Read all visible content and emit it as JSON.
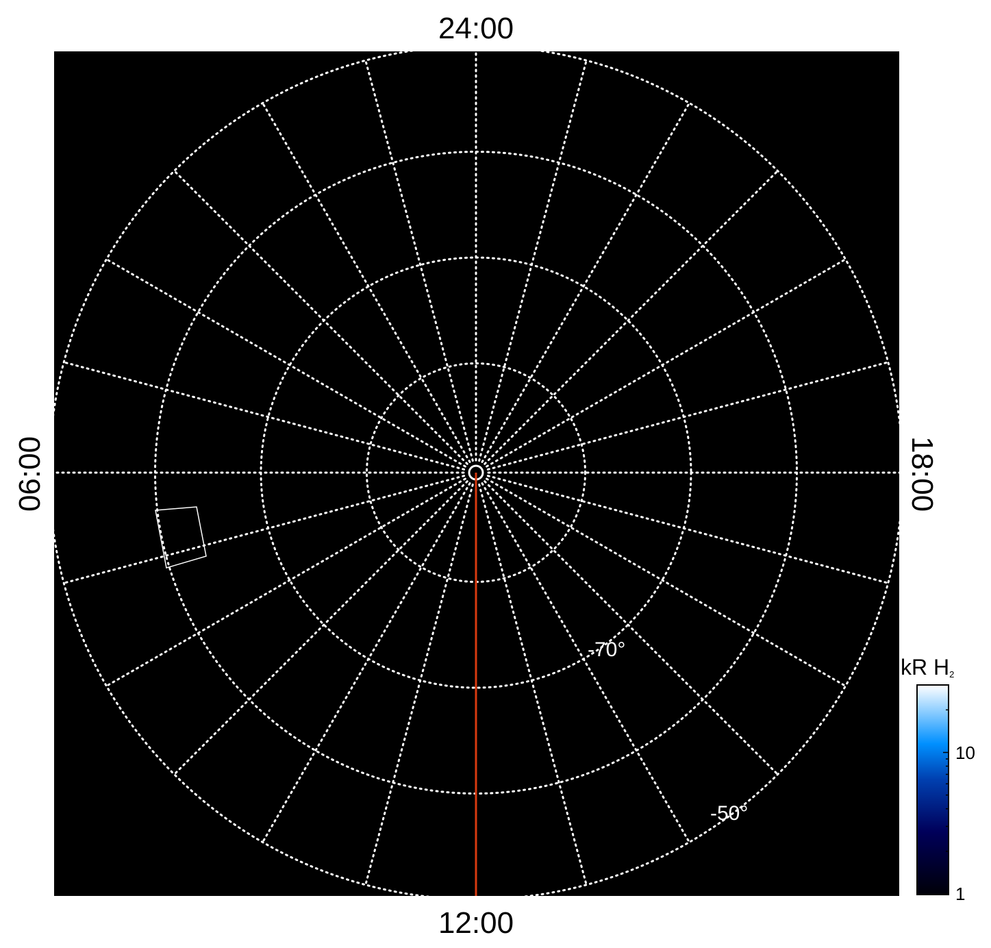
{
  "chart_data": {
    "type": "polar-map",
    "projection": "south polar, local time vs latitude",
    "local_time_labels": {
      "top": "24:00",
      "bottom": "12:00",
      "left": "06:00",
      "right": "18:00"
    },
    "latitude_circles": [
      -80,
      -70,
      -60,
      -50
    ],
    "latitude_labels": [
      "-70°",
      "-50°"
    ],
    "meridian_step_hours": 1,
    "grid": "dotted white",
    "background": "#000000",
    "highlight_line": {
      "local_time": "12:00",
      "color": "#d83a10",
      "from_lat": -90,
      "to_lat": -50
    },
    "footprint_box_color": "#ffffff",
    "colorbar": {
      "label": "kR H",
      "label_subscript": "2",
      "scale": "log",
      "range": [
        1,
        30
      ],
      "ticks": [
        {
          "value": 1,
          "label": "1"
        },
        {
          "value": 10,
          "label": "10"
        }
      ],
      "colormap": [
        "#000000",
        "#00004a",
        "#0030a0",
        "#0090ff",
        "#ffffff"
      ]
    }
  }
}
